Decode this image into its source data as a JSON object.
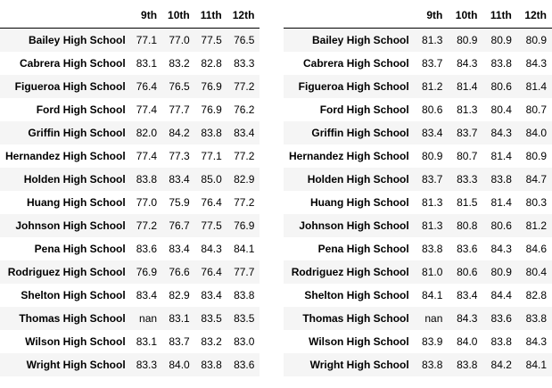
{
  "tables": [
    {
      "columns": [
        "9th",
        "10th",
        "11th",
        "12th"
      ],
      "rows": [
        {
          "school": "Bailey High School",
          "values": [
            "77.1",
            "77.0",
            "77.5",
            "76.5"
          ]
        },
        {
          "school": "Cabrera High School",
          "values": [
            "83.1",
            "83.2",
            "82.8",
            "83.3"
          ]
        },
        {
          "school": "Figueroa High School",
          "values": [
            "76.4",
            "76.5",
            "76.9",
            "77.2"
          ]
        },
        {
          "school": "Ford High School",
          "values": [
            "77.4",
            "77.7",
            "76.9",
            "76.2"
          ]
        },
        {
          "school": "Griffin High School",
          "values": [
            "82.0",
            "84.2",
            "83.8",
            "83.4"
          ]
        },
        {
          "school": "Hernandez High School",
          "values": [
            "77.4",
            "77.3",
            "77.1",
            "77.2"
          ]
        },
        {
          "school": "Holden High School",
          "values": [
            "83.8",
            "83.4",
            "85.0",
            "82.9"
          ]
        },
        {
          "school": "Huang High School",
          "values": [
            "77.0",
            "75.9",
            "76.4",
            "77.2"
          ]
        },
        {
          "school": "Johnson High School",
          "values": [
            "77.2",
            "76.7",
            "77.5",
            "76.9"
          ]
        },
        {
          "school": "Pena High School",
          "values": [
            "83.6",
            "83.4",
            "84.3",
            "84.1"
          ]
        },
        {
          "school": "Rodriguez High School",
          "values": [
            "76.9",
            "76.6",
            "76.4",
            "77.7"
          ]
        },
        {
          "school": "Shelton High School",
          "values": [
            "83.4",
            "82.9",
            "83.4",
            "83.8"
          ]
        },
        {
          "school": "Thomas High School",
          "values": [
            "nan",
            "83.1",
            "83.5",
            "83.5"
          ]
        },
        {
          "school": "Wilson High School",
          "values": [
            "83.1",
            "83.7",
            "83.2",
            "83.0"
          ]
        },
        {
          "school": "Wright High School",
          "values": [
            "83.3",
            "84.0",
            "83.8",
            "83.6"
          ]
        }
      ]
    },
    {
      "columns": [
        "9th",
        "10th",
        "11th",
        "12th"
      ],
      "rows": [
        {
          "school": "Bailey High School",
          "values": [
            "81.3",
            "80.9",
            "80.9",
            "80.9"
          ]
        },
        {
          "school": "Cabrera High School",
          "values": [
            "83.7",
            "84.3",
            "83.8",
            "84.3"
          ]
        },
        {
          "school": "Figueroa High School",
          "values": [
            "81.2",
            "81.4",
            "80.6",
            "81.4"
          ]
        },
        {
          "school": "Ford High School",
          "values": [
            "80.6",
            "81.3",
            "80.4",
            "80.7"
          ]
        },
        {
          "school": "Griffin High School",
          "values": [
            "83.4",
            "83.7",
            "84.3",
            "84.0"
          ]
        },
        {
          "school": "Hernandez High School",
          "values": [
            "80.9",
            "80.7",
            "81.4",
            "80.9"
          ]
        },
        {
          "school": "Holden High School",
          "values": [
            "83.7",
            "83.3",
            "83.8",
            "84.7"
          ]
        },
        {
          "school": "Huang High School",
          "values": [
            "81.3",
            "81.5",
            "81.4",
            "80.3"
          ]
        },
        {
          "school": "Johnson High School",
          "values": [
            "81.3",
            "80.8",
            "80.6",
            "81.2"
          ]
        },
        {
          "school": "Pena High School",
          "values": [
            "83.8",
            "83.6",
            "84.3",
            "84.6"
          ]
        },
        {
          "school": "Rodriguez High School",
          "values": [
            "81.0",
            "80.6",
            "80.9",
            "80.4"
          ]
        },
        {
          "school": "Shelton High School",
          "values": [
            "84.1",
            "83.4",
            "84.4",
            "82.8"
          ]
        },
        {
          "school": "Thomas High School",
          "values": [
            "nan",
            "84.3",
            "83.6",
            "83.8"
          ]
        },
        {
          "school": "Wilson High School",
          "values": [
            "83.9",
            "84.0",
            "83.8",
            "84.3"
          ]
        },
        {
          "school": "Wright High School",
          "values": [
            "83.8",
            "83.8",
            "84.2",
            "84.1"
          ]
        }
      ]
    }
  ]
}
